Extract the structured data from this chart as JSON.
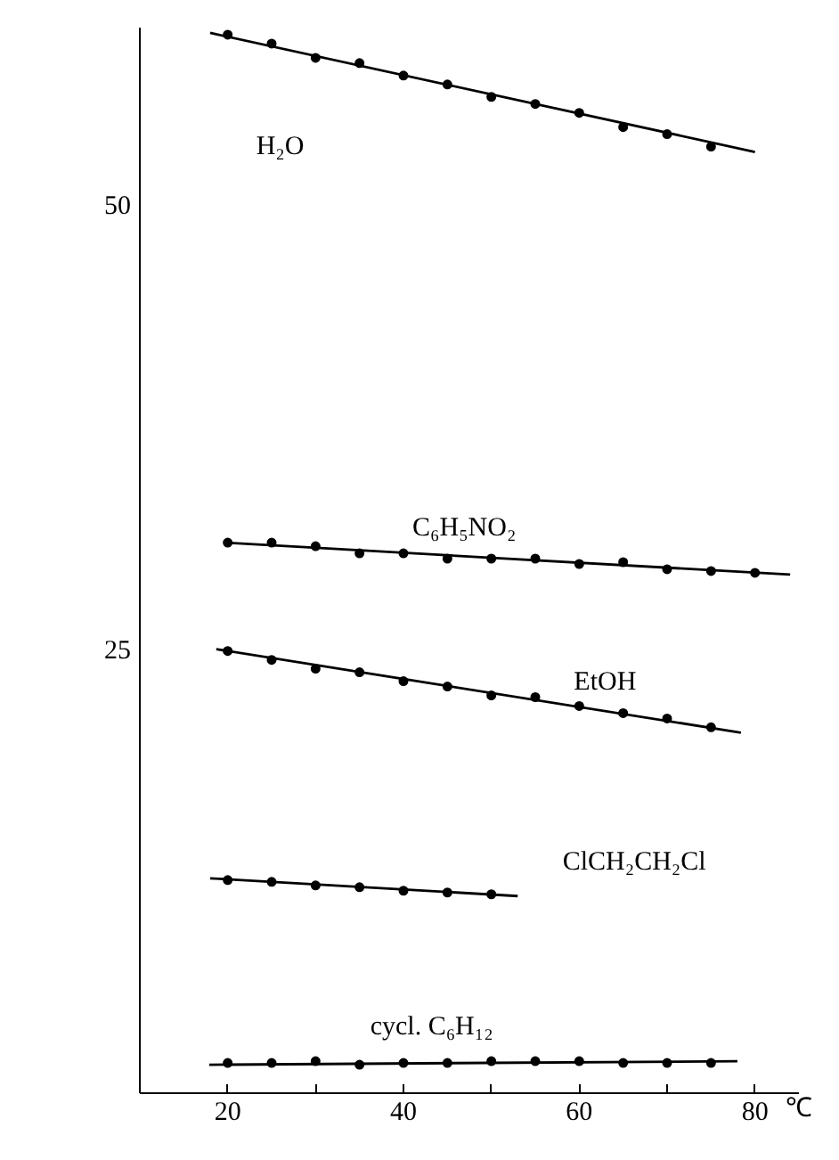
{
  "chart_data": {
    "type": "scatter",
    "xlabel": "℃",
    "xlim": [
      10,
      85
    ],
    "ylim": [
      0,
      60
    ],
    "xticks": [
      {
        "value": 10,
        "label": null
      },
      20,
      {
        "value": 30,
        "label": null
      },
      40,
      {
        "value": 50,
        "label": null
      },
      60,
      {
        "value": 70,
        "label": null
      },
      80
    ],
    "yticks": [
      25,
      50
    ],
    "grid": false,
    "series": [
      {
        "name": "H₂O",
        "marker": "circle",
        "color": "#000000",
        "x": [
          20,
          25,
          30,
          35,
          40,
          45,
          50,
          55,
          60,
          65,
          70,
          75
        ],
        "values": [
          59.6,
          59.1,
          58.3,
          58.0,
          57.3,
          56.8,
          56.1,
          55.7,
          55.2,
          54.4,
          54.0,
          53.3
        ]
      },
      {
        "type": "line",
        "marker": "none",
        "color": "#000000",
        "x": [
          18,
          80
        ],
        "values": [
          59.7,
          53.0
        ]
      },
      {
        "name": "C₆H₅NO₂",
        "marker": "circle",
        "color": "#000000",
        "x": [
          20,
          25,
          30,
          35,
          40,
          45,
          50,
          55,
          60,
          65,
          70,
          75,
          80
        ],
        "values": [
          31.0,
          31.0,
          30.8,
          30.4,
          30.4,
          30.1,
          30.1,
          30.1,
          29.8,
          29.9,
          29.5,
          29.4,
          29.3
        ]
      },
      {
        "type": "line",
        "marker": "none",
        "color": "#000000",
        "x": [
          19.6,
          84
        ],
        "values": [
          31.0,
          29.2
        ]
      },
      {
        "name": "EtOH",
        "marker": "circle",
        "color": "#000000",
        "x": [
          20,
          25,
          30,
          35,
          40,
          45,
          50,
          55,
          60,
          65,
          70,
          75
        ],
        "values": [
          24.9,
          24.4,
          23.9,
          23.7,
          23.2,
          22.9,
          22.4,
          22.3,
          21.8,
          21.4,
          21.1,
          20.6
        ]
      },
      {
        "type": "line",
        "marker": "none",
        "color": "#000000",
        "x": [
          18.7,
          78.4
        ],
        "values": [
          25.0,
          20.3
        ]
      },
      {
        "name": "ClCH₂CH₂Cl",
        "marker": "circle",
        "color": "#000000",
        "x": [
          20,
          25,
          30,
          35,
          40,
          45,
          50
        ],
        "values": [
          12.0,
          11.9,
          11.7,
          11.6,
          11.4,
          11.3,
          11.2
        ]
      },
      {
        "type": "line",
        "marker": "none",
        "color": "#000000",
        "x": [
          18,
          53
        ],
        "values": [
          12.1,
          11.1
        ]
      },
      {
        "name": "cycl.   C₆H₁₂",
        "marker": "circle",
        "color": "#000000",
        "x": [
          20,
          25,
          30,
          35,
          40,
          45,
          50,
          55,
          60,
          65,
          70,
          75
        ],
        "values": [
          1.7,
          1.7,
          1.8,
          1.6,
          1.7,
          1.7,
          1.8,
          1.8,
          1.8,
          1.7,
          1.7,
          1.7
        ]
      },
      {
        "type": "line",
        "marker": "none",
        "color": "#000000",
        "x": [
          17.9,
          78
        ],
        "values": [
          1.6,
          1.8
        ]
      }
    ]
  }
}
